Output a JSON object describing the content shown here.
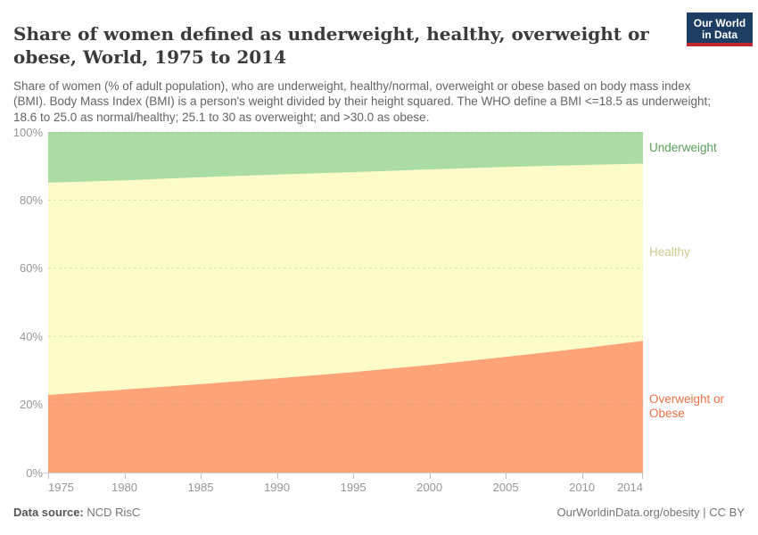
{
  "header": {
    "title": "Share of women defined as underweight, healthy, overweight or obese, World, 1975 to 2014",
    "subtitle": "Share of women (% of adult population), who are underweight, healthy/normal, overweight or obese based on body mass index (BMI). Body Mass Index (BMI) is a person's weight divided by their height squared. The WHO define a BMI <=18.5 as underweight; 18.6 to 25.0 as normal/healthy; 25.1 to 30 as overweight; and >30.0 as obese.",
    "logo": {
      "line1": "Our World",
      "line2": "in Data",
      "bg_color": "#1d3d63",
      "bar_color": "#c0272f",
      "text_color": "#ffffff"
    }
  },
  "footer": {
    "source_label": "Data source:",
    "source_value": " NCD RisC",
    "right_text": "OurWorldinData.org/obesity | CC BY"
  },
  "chart_data": {
    "type": "area",
    "stacked": true,
    "title": "Share of women defined as underweight, healthy, overweight or obese, World, 1975 to 2014",
    "x": [
      1975,
      1980,
      1985,
      1990,
      1995,
      2000,
      2005,
      2010,
      2014
    ],
    "series": [
      {
        "name": "Overweight or Obese",
        "values": [
          22.8,
          24.4,
          26.0,
          27.7,
          29.5,
          31.6,
          34.0,
          36.5,
          38.7
        ],
        "area_color": "#fca378",
        "label_color": "#ee7145"
      },
      {
        "name": "Healthy",
        "values": [
          62.3,
          61.4,
          60.7,
          59.8,
          58.7,
          57.4,
          55.7,
          53.8,
          52.0
        ],
        "area_color": "#fdfbc7",
        "label_color": "#cecb8f"
      },
      {
        "name": "Underweight",
        "values": [
          14.9,
          14.2,
          13.3,
          12.5,
          11.8,
          11.0,
          10.3,
          9.7,
          9.3
        ],
        "area_color": "#abdca3",
        "label_color": "#5aa05a"
      }
    ],
    "unit": "%",
    "ylim": [
      0,
      100
    ],
    "y_ticks": [
      0,
      20,
      40,
      60,
      80,
      100
    ],
    "y_tick_suffix": "%",
    "x_ticks": [
      1975,
      1980,
      1985,
      1990,
      1995,
      2000,
      2005,
      2010,
      2014
    ],
    "grid": "horizontal-dashed",
    "legend_position": "right-of-plot",
    "grid_color": "#8f8f8f"
  }
}
